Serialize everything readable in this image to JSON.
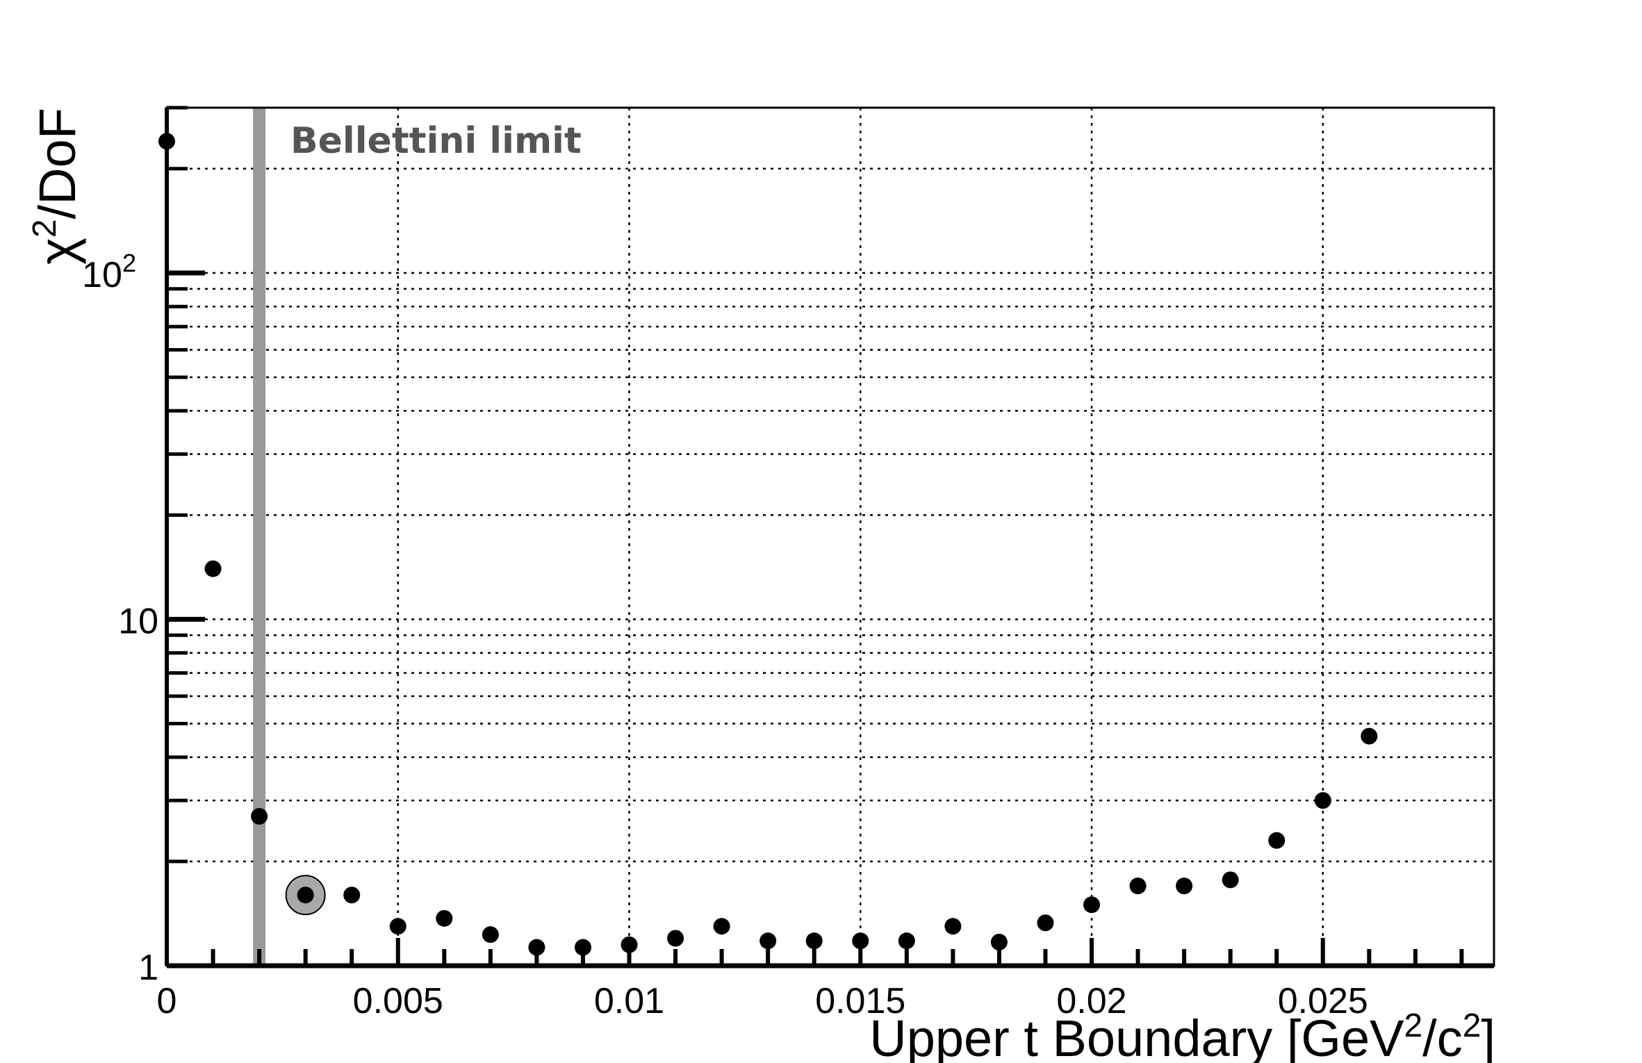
{
  "chart_data": {
    "type": "scatter",
    "title": "",
    "xlabel": {
      "main": "Upper t Boundary [GeV",
      "sup1": "2",
      "mid": "/c",
      "sup2": "2",
      "end": "]"
    },
    "ylabel": {
      "main": "χ",
      "sup": "2",
      "end": "/DoF"
    },
    "y_scale": "log",
    "xlim": [
      0,
      0.0287
    ],
    "ylim": [
      1,
      300
    ],
    "grid": true,
    "x_ticks": [
      {
        "value": 0,
        "label": "0"
      },
      {
        "value": 0.005,
        "label": "0.005"
      },
      {
        "value": 0.01,
        "label": "0.01"
      },
      {
        "value": 0.015,
        "label": "0.015"
      },
      {
        "value": 0.02,
        "label": "0.02"
      },
      {
        "value": 0.025,
        "label": "0.025"
      }
    ],
    "y_ticks": [
      {
        "value": 1,
        "label": "1"
      },
      {
        "value": 10,
        "label": "10"
      },
      {
        "value": 100,
        "label": "10",
        "sup": "2"
      }
    ],
    "annotation": {
      "label": "Bellettini limit",
      "x": 0.002,
      "color": "#9a9a9a"
    },
    "highlighted_point": {
      "x": 0.003,
      "y": 1.6
    },
    "x": [
      0,
      0.001,
      0.002,
      0.003,
      0.004,
      0.005,
      0.006,
      0.007,
      0.008,
      0.009,
      0.01,
      0.011,
      0.012,
      0.013,
      0.014,
      0.015,
      0.016,
      0.017,
      0.018,
      0.019,
      0.02,
      0.021,
      0.022,
      0.023,
      0.024,
      0.025,
      0.026
    ],
    "y": [
      240,
      14,
      2.7,
      1.6,
      1.6,
      1.3,
      1.37,
      1.23,
      1.13,
      1.13,
      1.15,
      1.2,
      1.3,
      1.18,
      1.18,
      1.18,
      1.18,
      1.3,
      1.17,
      1.33,
      1.5,
      1.7,
      1.7,
      1.77,
      2.3,
      3.0,
      4.6
    ]
  }
}
